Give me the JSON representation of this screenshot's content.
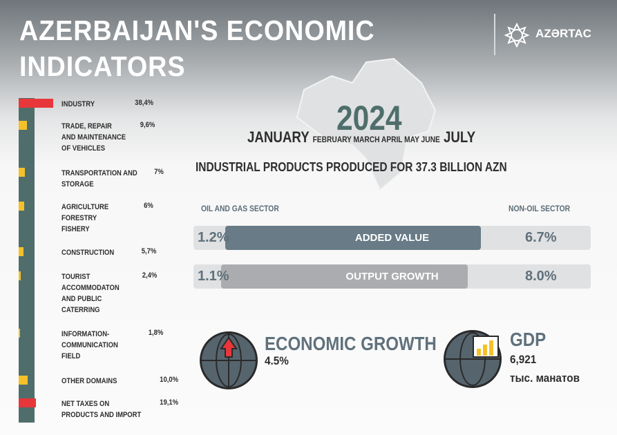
{
  "title": {
    "line1": "AZERBAIJAN'S ECONOMIC",
    "line2": "INDICATORS"
  },
  "logo": {
    "text": "AZƏRTAC"
  },
  "year": "2024",
  "period": {
    "start": "JANUARY",
    "middle": "FEBRUARY MARCH APRIL MAY JUNE",
    "end": "JULY"
  },
  "headline": "INDUSTRIAL PRODUCTS PRODUCED FOR 37.3 BILLION AZN",
  "sectors": {
    "left": "OIL AND GAS SECTOR",
    "right": "NON-OIL SECTOR"
  },
  "comparison": [
    {
      "label": "ADDED VALUE",
      "oil_gas": "1.2%",
      "non_oil": "6.7%",
      "color": "#687b86"
    },
    {
      "label": "OUTPUT GROWTH",
      "oil_gas": "1.1%",
      "non_oil": "8.0%",
      "color": "#abacaf"
    }
  ],
  "growth": {
    "title": "ECONOMIC GROWTH",
    "value": "4.5%"
  },
  "gdp": {
    "title": "GDP",
    "value": "6,921",
    "unit": "тыс. манатов"
  },
  "colors": {
    "column": "#4f6e6b",
    "highlight": "#e8373a",
    "normal": "#f5c12b"
  },
  "chart_data": {
    "type": "bar",
    "orientation": "horizontal",
    "categories": [
      "INDUSTRY",
      "TRADE, REPAIR\nAND MAINTENANCE\nOF VEHICLES",
      "TRANSPORTATION AND\nSTORAGE",
      "AGRICULTURE\nFORESTRY\nFISHERY",
      "CONSTRUCTION",
      "TOURIST\nACCOMMODATON\nAND PUBLIC\nCATERRING",
      "INFORMATION-\nCOMMUNICATION\nFIELD",
      "OTHER DOMAINS",
      "NET TAXES ON\nPRODUCTS AND IMPORT"
    ],
    "values": [
      38.4,
      9.6,
      7,
      6,
      5.7,
      2.4,
      1.8,
      10.0,
      19.1
    ],
    "labels": [
      "38,4%",
      "9,6%",
      "7%",
      "6%",
      "5,7%",
      "2,4%",
      "1,8%",
      "10,0%",
      "19,1%"
    ],
    "highlighted": [
      true,
      false,
      false,
      false,
      false,
      false,
      false,
      false,
      true
    ]
  }
}
